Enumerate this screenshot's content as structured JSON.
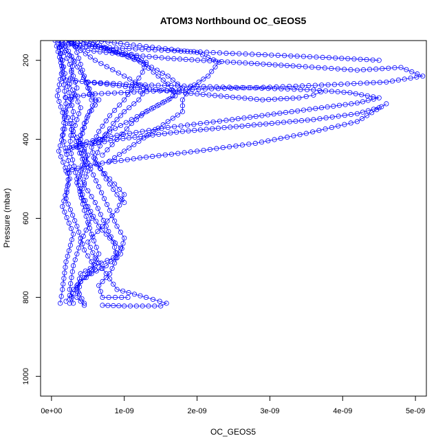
{
  "chart_data": {
    "type": "scatter",
    "title": "ATOM3 Northbound OC_GEOS5",
    "xlabel": "OC_GEOS5",
    "ylabel": "Pressure (mbar)",
    "xlim": [
      -1.5e-10,
      5.15e-09
    ],
    "ylim": [
      1050,
      150
    ],
    "y_reversed": true,
    "x_ticks": [
      {
        "value": 0,
        "label": "0e+00"
      },
      {
        "value": 1e-09,
        "label": "1e-09"
      },
      {
        "value": 2e-09,
        "label": "2e-09"
      },
      {
        "value": 3e-09,
        "label": "3e-09"
      },
      {
        "value": 4e-09,
        "label": "4e-09"
      },
      {
        "value": 5e-09,
        "label": "5e-09"
      }
    ],
    "y_ticks": [
      {
        "value": 200,
        "label": "200"
      },
      {
        "value": 400,
        "label": "400"
      },
      {
        "value": 600,
        "label": "600"
      },
      {
        "value": 800,
        "label": "800"
      },
      {
        "value": 1000,
        "label": "1000"
      }
    ],
    "grid": false,
    "legend": "none",
    "marker": "open-circle",
    "line_between_points": true,
    "color": "#0000ff",
    "profiles": [
      {
        "points": [
          [
            2e-10,
            150
          ],
          [
            5e-10,
            175
          ],
          [
            1e-09,
            185
          ],
          [
            1.6e-09,
            195
          ],
          [
            2.5e-09,
            205
          ],
          [
            3.4e-09,
            215
          ],
          [
            4.2e-09,
            225
          ],
          [
            4.8e-09,
            218
          ],
          [
            5.1e-09,
            240
          ],
          [
            4.6e-09,
            255
          ],
          [
            3.8e-09,
            262
          ],
          [
            3e-09,
            268
          ],
          [
            2.2e-09,
            272
          ],
          [
            1.4e-09,
            278
          ],
          [
            6e-10,
            285
          ],
          [
            2e-10,
            295
          ]
        ]
      },
      {
        "points": [
          [
            1.5e-10,
            160
          ],
          [
            8e-10,
            168
          ],
          [
            1.6e-09,
            175
          ],
          [
            2.4e-09,
            182
          ],
          [
            3.2e-09,
            188
          ],
          [
            3.9e-09,
            194
          ],
          [
            4.5e-09,
            200
          ]
        ]
      },
      {
        "points": [
          [
            5e-10,
            255
          ],
          [
            1.2e-09,
            262
          ],
          [
            2e-09,
            266
          ],
          [
            2.8e-09,
            270
          ],
          [
            3.6e-09,
            275
          ],
          [
            4.1e-09,
            282
          ],
          [
            4.5e-09,
            295
          ],
          [
            4.2e-09,
            308
          ],
          [
            3.3e-09,
            330
          ],
          [
            2.4e-09,
            352
          ],
          [
            1.6e-09,
            370
          ],
          [
            9e-10,
            390
          ],
          [
            4e-10,
            410
          ],
          [
            2e-10,
            430
          ]
        ]
      },
      {
        "points": [
          [
            2.5e-10,
            250
          ],
          [
            1.1e-09,
            268
          ],
          [
            2e-09,
            285
          ],
          [
            2.9e-09,
            300
          ],
          [
            3.4e-09,
            295
          ],
          [
            3.6e-09,
            288
          ],
          [
            3.7e-09,
            280
          ]
        ]
      },
      {
        "points": [
          [
            3e-10,
            420
          ],
          [
            9e-10,
            400
          ],
          [
            1.8e-09,
            380
          ],
          [
            2.7e-09,
            365
          ],
          [
            3.6e-09,
            350
          ],
          [
            4.2e-09,
            335
          ],
          [
            4.5e-09,
            320
          ]
        ]
      },
      {
        "points": [
          [
            2e-10,
            480
          ],
          [
            7e-10,
            460
          ],
          [
            1.3e-09,
            445
          ],
          [
            2e-09,
            430
          ],
          [
            2.8e-09,
            410
          ],
          [
            3.5e-09,
            385
          ],
          [
            4.2e-09,
            355
          ],
          [
            4.6e-09,
            310
          ]
        ]
      },
      {
        "points": [
          [
            2e-10,
            150
          ],
          [
            6e-10,
            165
          ],
          [
            1.1e-09,
            185
          ],
          [
            1.3e-09,
            205
          ],
          [
            1.25e-09,
            230
          ],
          [
            1.15e-09,
            260
          ],
          [
            1e-09,
            300
          ],
          [
            8e-10,
            340
          ],
          [
            6.5e-10,
            380
          ],
          [
            5.5e-10,
            420
          ],
          [
            6e-10,
            460
          ],
          [
            8e-10,
            500
          ],
          [
            1e-09,
            540
          ],
          [
            9e-10,
            580
          ],
          [
            7e-10,
            620
          ],
          [
            5e-10,
            660
          ],
          [
            6e-10,
            700
          ],
          [
            7.5e-10,
            740
          ],
          [
            9e-10,
            780
          ],
          [
            1.3e-09,
            800
          ],
          [
            1.58e-09,
            815
          ],
          [
            1.5e-09,
            822
          ],
          [
            1e-09,
            822
          ],
          [
            7e-10,
            820
          ]
        ]
      },
      {
        "points": [
          [
            1e-10,
            150
          ],
          [
            3e-10,
            200
          ],
          [
            2.5e-10,
            260
          ],
          [
            4e-10,
            320
          ],
          [
            3e-10,
            380
          ],
          [
            5e-10,
            440
          ],
          [
            4e-10,
            500
          ],
          [
            6e-10,
            560
          ],
          [
            7.5e-10,
            620
          ],
          [
            8.5e-10,
            660
          ],
          [
            9e-10,
            700
          ],
          [
            8e-10,
            740
          ],
          [
            6.5e-10,
            770
          ],
          [
            7e-10,
            800
          ],
          [
            1.05e-09,
            800
          ]
        ]
      },
      {
        "points": [
          [
            5e-11,
            150
          ],
          [
            1.5e-10,
            220
          ],
          [
            8e-11,
            290
          ],
          [
            2e-10,
            360
          ],
          [
            1e-10,
            430
          ],
          [
            2.5e-10,
            500
          ],
          [
            1.5e-10,
            570
          ],
          [
            3e-10,
            640
          ],
          [
            2e-10,
            710
          ],
          [
            1.5e-10,
            780
          ],
          [
            1.2e-10,
            815
          ]
        ]
      },
      {
        "points": [
          [
            1e-10,
            150
          ],
          [
            2.5e-10,
            210
          ],
          [
            3.5e-10,
            270
          ],
          [
            2e-10,
            330
          ],
          [
            3e-10,
            390
          ],
          [
            4.5e-10,
            450
          ],
          [
            3.5e-10,
            510
          ],
          [
            5e-10,
            570
          ],
          [
            6.5e-10,
            620
          ],
          [
            8e-10,
            650
          ],
          [
            9.5e-10,
            675
          ],
          [
            8.5e-10,
            700
          ],
          [
            6e-10,
            720
          ],
          [
            4e-10,
            740
          ],
          [
            3.5e-10,
            780
          ],
          [
            4.5e-10,
            815
          ]
        ]
      },
      {
        "points": [
          [
            3e-10,
            150
          ],
          [
            4e-10,
            210
          ],
          [
            5e-10,
            270
          ],
          [
            5.5e-10,
            300
          ],
          [
            6.5e-10,
            300
          ],
          [
            5e-10,
            340
          ],
          [
            4e-10,
            400
          ],
          [
            5e-10,
            460
          ],
          [
            6.5e-10,
            520
          ],
          [
            8e-10,
            580
          ],
          [
            9e-10,
            620
          ],
          [
            1e-09,
            650
          ],
          [
            9.5e-10,
            690
          ],
          [
            7.5e-10,
            720
          ],
          [
            5.5e-10,
            740
          ],
          [
            4e-10,
            760
          ],
          [
            3.5e-10,
            800
          ],
          [
            4.5e-10,
            820
          ]
        ]
      },
      {
        "points": [
          [
            1e-10,
            150
          ],
          [
            1.5e-10,
            230
          ],
          [
            2e-10,
            310
          ],
          [
            1.5e-10,
            390
          ],
          [
            2.5e-10,
            470
          ],
          [
            2e-10,
            550
          ],
          [
            3.5e-10,
            620
          ],
          [
            4.5e-10,
            680
          ],
          [
            5.5e-10,
            710
          ],
          [
            6e-10,
            730
          ],
          [
            4.5e-10,
            750
          ],
          [
            3e-10,
            780
          ],
          [
            2e-10,
            810
          ]
        ]
      },
      {
        "points": [
          [
            2e-10,
            150
          ],
          [
            6e-10,
            200
          ],
          [
            1e-09,
            240
          ],
          [
            1.3e-09,
            270
          ],
          [
            1.2e-09,
            300
          ],
          [
            1e-09,
            330
          ],
          [
            8.5e-10,
            360
          ],
          [
            7e-10,
            400
          ],
          [
            6e-10,
            450
          ],
          [
            7.5e-10,
            500
          ],
          [
            9e-10,
            540
          ],
          [
            1e-09,
            560
          ]
        ]
      },
      {
        "points": [
          [
            4e-10,
            150
          ],
          [
            8e-10,
            175
          ],
          [
            1.2e-09,
            200
          ],
          [
            1.4e-09,
            230
          ],
          [
            1.6e-09,
            260
          ],
          [
            1.7e-09,
            290
          ],
          [
            1.4e-09,
            320
          ],
          [
            1.1e-09,
            350
          ],
          [
            8e-10,
            380
          ],
          [
            6e-10,
            410
          ]
        ]
      },
      {
        "points": [
          [
            6e-10,
            150
          ],
          [
            1.3e-09,
            165
          ],
          [
            2e-09,
            180
          ],
          [
            2.3e-09,
            205
          ],
          [
            2.15e-09,
            240
          ],
          [
            1.9e-09,
            270
          ],
          [
            1.8e-09,
            300
          ],
          [
            1.8e-09,
            330
          ],
          [
            1.6e-09,
            355
          ],
          [
            1.4e-09,
            380
          ],
          [
            1.2e-09,
            405
          ],
          [
            1e-09,
            430
          ],
          [
            8e-10,
            455
          ]
        ]
      },
      {
        "points": [
          [
            1.5e-10,
            150
          ],
          [
            4e-10,
            230
          ],
          [
            6e-10,
            300
          ],
          [
            4.5e-10,
            360
          ],
          [
            3.5e-10,
            420
          ],
          [
            5e-10,
            480
          ],
          [
            4e-10,
            540
          ],
          [
            5.5e-10,
            600
          ],
          [
            4e-10,
            660
          ],
          [
            3e-10,
            720
          ],
          [
            2.5e-10,
            780
          ],
          [
            3e-10,
            815
          ]
        ]
      },
      {
        "points": [
          [
            5e-10,
            150
          ],
          [
            9e-10,
            180
          ],
          [
            1.3e-09,
            210
          ],
          [
            1.6e-09,
            240
          ],
          [
            1.8e-09,
            270
          ],
          [
            1.6e-09,
            300
          ],
          [
            1.3e-09,
            330
          ],
          [
            1.1e-09,
            360
          ],
          [
            9e-10,
            400
          ],
          [
            7e-10,
            440
          ]
        ]
      },
      {
        "points": [
          [
            1e-10,
            150
          ],
          [
            2e-10,
            250
          ],
          [
            3e-10,
            330
          ],
          [
            2.5e-10,
            420
          ],
          [
            3.5e-10,
            500
          ],
          [
            4.5e-10,
            580
          ],
          [
            5.5e-10,
            640
          ],
          [
            6.5e-10,
            690
          ],
          [
            5.5e-10,
            730
          ],
          [
            4e-10,
            760
          ],
          [
            3e-10,
            790
          ],
          [
            2.5e-10,
            815
          ]
        ]
      }
    ]
  }
}
